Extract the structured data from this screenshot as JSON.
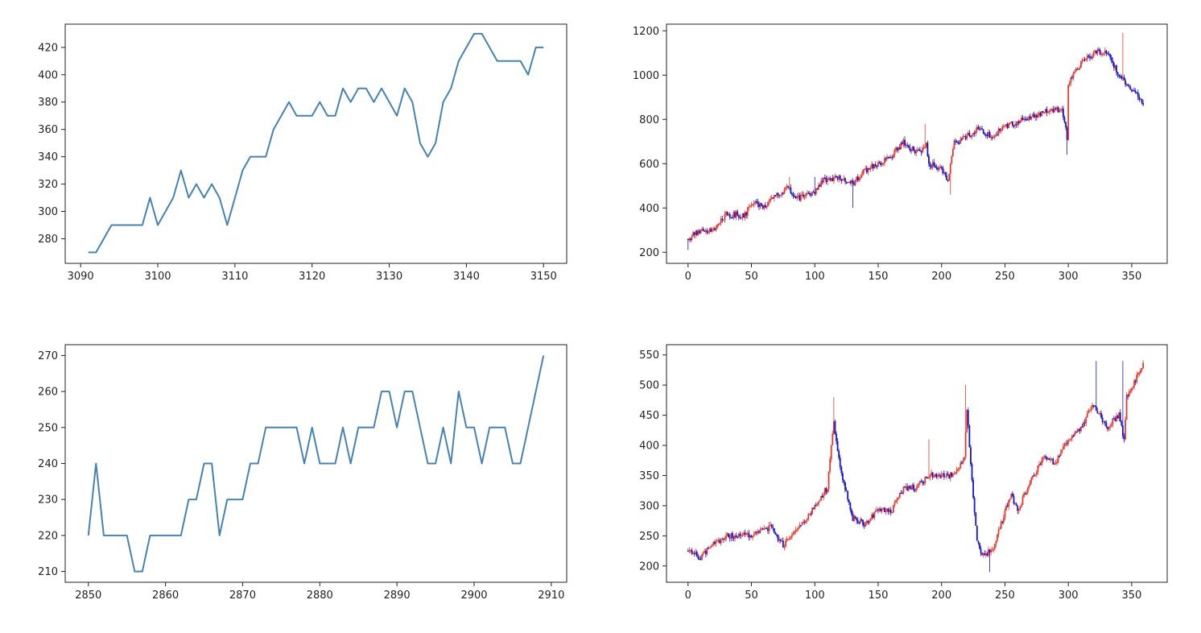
{
  "figure": {
    "background": "#ffffff",
    "axes_color": "#222222",
    "line_color": "#4682b4",
    "up_color": "#e8372c",
    "down_color": "#1414c8"
  },
  "chart_data": [
    {
      "type": "line",
      "position": "top-left",
      "title": "",
      "xlabel": "",
      "ylabel": "",
      "grid": false,
      "xlim": [
        3088,
        3153
      ],
      "ylim": [
        262,
        437
      ],
      "xticks": [
        3090,
        3100,
        3110,
        3120,
        3130,
        3140,
        3150
      ],
      "yticks": [
        280,
        300,
        320,
        340,
        360,
        380,
        400,
        420
      ],
      "series": [
        {
          "color": "#4682b4",
          "x": [
            3091,
            3092,
            3094,
            3095,
            3096,
            3097,
            3098,
            3099,
            3100,
            3102,
            3103,
            3104,
            3105,
            3106,
            3107,
            3108,
            3109,
            3110,
            3111,
            3112,
            3113,
            3114,
            3115,
            3117,
            3118,
            3119,
            3120,
            3121,
            3122,
            3123,
            3124,
            3125,
            3126,
            3127,
            3128,
            3129,
            3130,
            3131,
            3132,
            3133,
            3134,
            3135,
            3136,
            3137,
            3138,
            3139,
            3141,
            3142,
            3144,
            3147,
            3148,
            3149,
            3150
          ],
          "y": [
            270,
            270,
            290,
            290,
            290,
            290,
            290,
            310,
            290,
            310,
            330,
            310,
            320,
            310,
            320,
            310,
            290,
            310,
            330,
            340,
            340,
            340,
            360,
            380,
            370,
            370,
            370,
            380,
            370,
            370,
            390,
            380,
            390,
            390,
            380,
            390,
            380,
            370,
            390,
            380,
            350,
            340,
            350,
            380,
            390,
            410,
            430,
            430,
            410,
            410,
            400,
            420,
            420
          ]
        }
      ]
    },
    {
      "type": "candlestick",
      "position": "top-right",
      "title": "",
      "xlabel": "",
      "ylabel": "",
      "grid": false,
      "xlim": [
        -17,
        378
      ],
      "ylim": [
        150,
        1230
      ],
      "xticks": [
        0,
        50,
        100,
        150,
        200,
        250,
        300,
        350
      ],
      "yticks": [
        200,
        400,
        600,
        800,
        1000,
        1200
      ],
      "n": 360,
      "shape_points": [
        [
          0,
          260
        ],
        [
          10,
          300
        ],
        [
          20,
          300
        ],
        [
          30,
          370
        ],
        [
          45,
          370
        ],
        [
          50,
          420
        ],
        [
          60,
          410
        ],
        [
          70,
          460
        ],
        [
          80,
          490
        ],
        [
          85,
          440
        ],
        [
          100,
          470
        ],
        [
          105,
          520
        ],
        [
          120,
          540
        ],
        [
          130,
          510
        ],
        [
          140,
          570
        ],
        [
          150,
          600
        ],
        [
          160,
          630
        ],
        [
          170,
          700
        ],
        [
          180,
          650
        ],
        [
          188,
          680
        ],
        [
          190,
          600
        ],
        [
          200,
          580
        ],
        [
          205,
          520
        ],
        [
          210,
          690
        ],
        [
          230,
          760
        ],
        [
          240,
          720
        ],
        [
          250,
          770
        ],
        [
          260,
          790
        ],
        [
          270,
          810
        ],
        [
          285,
          840
        ],
        [
          295,
          840
        ],
        [
          299,
          720
        ],
        [
          300,
          960
        ],
        [
          310,
          1050
        ],
        [
          320,
          1100
        ],
        [
          330,
          1110
        ],
        [
          340,
          1000
        ],
        [
          350,
          940
        ],
        [
          360,
          870
        ]
      ],
      "spikes": [
        [
          0,
          210
        ],
        [
          80,
          540
        ],
        [
          100,
          540
        ],
        [
          130,
          400
        ],
        [
          187,
          780
        ],
        [
          207,
          460
        ],
        [
          299,
          640
        ],
        [
          343,
          1190
        ]
      ]
    },
    {
      "type": "line",
      "position": "bottom-left",
      "title": "",
      "xlabel": "",
      "ylabel": "",
      "grid": false,
      "xlim": [
        2847,
        2912
      ],
      "ylim": [
        207,
        273
      ],
      "xticks": [
        2850,
        2860,
        2870,
        2880,
        2890,
        2900,
        2910
      ],
      "yticks": [
        210,
        220,
        230,
        240,
        250,
        260,
        270
      ],
      "series": [
        {
          "color": "#4682b4",
          "x": [
            2850,
            2851,
            2852,
            2855,
            2856,
            2857,
            2858,
            2862,
            2863,
            2864,
            2865,
            2866,
            2867,
            2868,
            2870,
            2871,
            2872,
            2873,
            2877,
            2878,
            2879,
            2880,
            2882,
            2883,
            2884,
            2885,
            2887,
            2888,
            2889,
            2890,
            2891,
            2892,
            2894,
            2895,
            2896,
            2897,
            2898,
            2899,
            2900,
            2901,
            2902,
            2904,
            2905,
            2906,
            2909
          ],
          "y": [
            220,
            240,
            220,
            220,
            210,
            210,
            220,
            220,
            230,
            230,
            240,
            240,
            220,
            230,
            230,
            240,
            240,
            250,
            250,
            240,
            250,
            240,
            240,
            250,
            240,
            250,
            250,
            260,
            260,
            250,
            260,
            260,
            240,
            240,
            250,
            240,
            260,
            250,
            250,
            240,
            250,
            250,
            240,
            240,
            270
          ]
        }
      ]
    },
    {
      "type": "candlestick",
      "position": "bottom-right",
      "title": "",
      "xlabel": "",
      "ylabel": "",
      "grid": false,
      "xlim": [
        -17,
        378
      ],
      "ylim": [
        173,
        567
      ],
      "xticks": [
        0,
        50,
        100,
        150,
        200,
        250,
        300,
        350
      ],
      "yticks": [
        200,
        250,
        300,
        350,
        400,
        450,
        500,
        550
      ],
      "n": 360,
      "shape_points": [
        [
          0,
          225
        ],
        [
          10,
          215
        ],
        [
          20,
          235
        ],
        [
          30,
          250
        ],
        [
          50,
          250
        ],
        [
          65,
          265
        ],
        [
          75,
          235
        ],
        [
          90,
          270
        ],
        [
          100,
          300
        ],
        [
          110,
          330
        ],
        [
          115,
          440
        ],
        [
          120,
          360
        ],
        [
          125,
          320
        ],
        [
          130,
          280
        ],
        [
          140,
          270
        ],
        [
          150,
          295
        ],
        [
          160,
          290
        ],
        [
          170,
          330
        ],
        [
          180,
          330
        ],
        [
          190,
          350
        ],
        [
          200,
          350
        ],
        [
          210,
          350
        ],
        [
          218,
          380
        ],
        [
          220,
          460
        ],
        [
          225,
          310
        ],
        [
          228,
          240
        ],
        [
          232,
          220
        ],
        [
          240,
          225
        ],
        [
          250,
          290
        ],
        [
          255,
          320
        ],
        [
          260,
          290
        ],
        [
          270,
          340
        ],
        [
          280,
          380
        ],
        [
          290,
          370
        ],
        [
          300,
          410
        ],
        [
          310,
          430
        ],
        [
          320,
          470
        ],
        [
          325,
          450
        ],
        [
          330,
          430
        ],
        [
          340,
          450
        ],
        [
          344,
          410
        ],
        [
          346,
          480
        ],
        [
          360,
          540
        ]
      ],
      "spikes": [
        [
          115,
          480
        ],
        [
          190,
          410
        ],
        [
          219,
          500
        ],
        [
          238,
          190
        ],
        [
          322,
          540
        ],
        [
          343,
          540
        ]
      ]
    }
  ]
}
